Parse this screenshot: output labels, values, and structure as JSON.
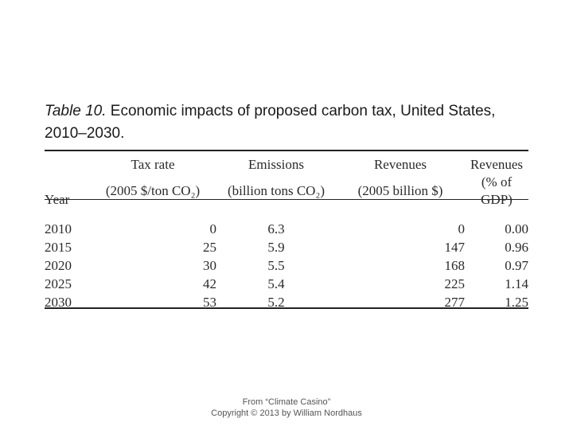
{
  "caption": {
    "label": "Table 10.",
    "title": "Economic impacts of proposed carbon tax, United States,",
    "title_line2": "2010–2030."
  },
  "table": {
    "headers": {
      "year": "Year",
      "tax_rate": "Tax rate",
      "tax_rate_unit": "(2005 $/ton CO₂)",
      "emissions": "Emissions",
      "emissions_unit": "(billion tons CO₂)",
      "revenues": "Revenues",
      "revenues_unit": "(2005 billion $)",
      "revenues_pct": "Revenues",
      "revenues_pct_unit": "(% of GDP)"
    },
    "rows": [
      {
        "year": "2010",
        "tax_rate": "0",
        "emissions": "6.3",
        "revenues": "0",
        "revenues_pct": "0.00"
      },
      {
        "year": "2015",
        "tax_rate": "25",
        "emissions": "5.9",
        "revenues": "147",
        "revenues_pct": "0.96"
      },
      {
        "year": "2020",
        "tax_rate": "30",
        "emissions": "5.5",
        "revenues": "168",
        "revenues_pct": "0.97"
      },
      {
        "year": "2025",
        "tax_rate": "42",
        "emissions": "5.4",
        "revenues": "225",
        "revenues_pct": "1.14"
      },
      {
        "year": "2030",
        "tax_rate": "53",
        "emissions": "5.2",
        "revenues": "277",
        "revenues_pct": "1.25"
      }
    ]
  },
  "footer": {
    "line1": "From “Climate Casino”",
    "line2": "Copyright © 2013 by William Nordhaus"
  }
}
